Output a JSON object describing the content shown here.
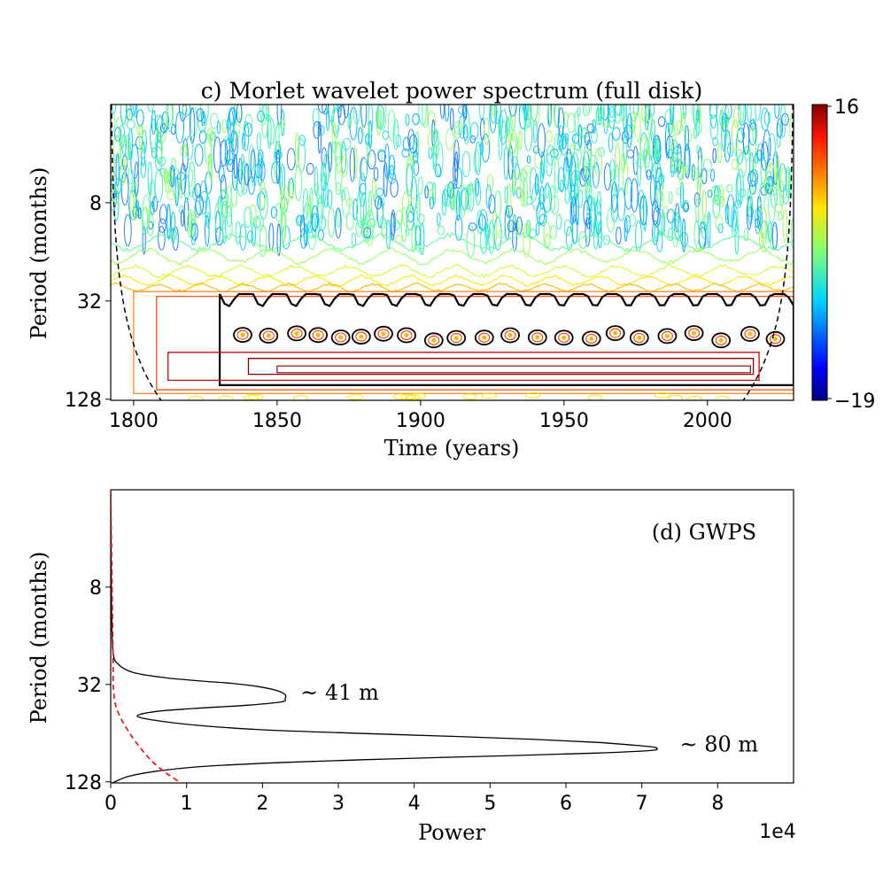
{
  "chart_data": [
    {
      "type": "heatmap",
      "title": "c) Morlet wavelet power spectrum (full disk)",
      "xlabel": "Time (years)",
      "ylabel": "Period (months)",
      "xlim": [
        1792,
        2030
      ],
      "x_ticks": [
        1800,
        1850,
        1900,
        1950,
        2000
      ],
      "y_scale": "log2",
      "y_inverted": true,
      "ylim": [
        2,
        130
      ],
      "y_ticks": [
        8,
        32,
        128
      ],
      "grid": false,
      "colorbar": {
        "min": -19,
        "max": 16,
        "tick_labels": [
          "16",
          "−19"
        ],
        "colormap": "jet"
      },
      "cone_of_influence": true,
      "contour_bands": [
        {
          "period_range": [
            2,
            16
          ],
          "level": "cyan/green",
          "pattern": "noisy"
        },
        {
          "period_range": [
            16,
            30
          ],
          "level": "yellow/orange"
        },
        {
          "period_range": [
            30,
            120
          ],
          "level": "red/dark red"
        }
      ]
    },
    {
      "type": "line",
      "title": "",
      "annotation": "(d) GWPS",
      "xlabel": "Power",
      "ylabel": "Period (months)",
      "xlim": [
        0,
        9
      ],
      "x_ticks": [
        0,
        1,
        2,
        3,
        4,
        5,
        6,
        7,
        8
      ],
      "x_multiplier": "1e4",
      "y_scale": "log2",
      "y_inverted": true,
      "ylim": [
        2,
        130
      ],
      "y_ticks": [
        8,
        32,
        128
      ],
      "grid": false,
      "series": [
        {
          "color": "#000000",
          "style": "solid",
          "points": [
            [
              2,
              0
            ],
            [
              10,
              0.01
            ],
            [
              20,
              0.03
            ],
            [
              24,
              0.1
            ],
            [
              27,
              0.3
            ],
            [
              29,
              0.7
            ],
            [
              30.5,
              1.2
            ],
            [
              31.5,
              1.6
            ],
            [
              33,
              1.95
            ],
            [
              35,
              2.2
            ],
            [
              37,
              2.3
            ],
            [
              39,
              2.3
            ],
            [
              41,
              2.25
            ],
            [
              43,
              1.8
            ],
            [
              45,
              1.1
            ],
            [
              47,
              0.6
            ],
            [
              50,
              0.35
            ],
            [
              53,
              0.55
            ],
            [
              57,
              1.1
            ],
            [
              61,
              2.0
            ],
            [
              64,
              3.2
            ],
            [
              67,
              4.5
            ],
            [
              70,
              5.6
            ],
            [
              73,
              6.4
            ],
            [
              76,
              6.9
            ],
            [
              78,
              7.15
            ],
            [
              80,
              7.2
            ],
            [
              82,
              7.1
            ],
            [
              85,
              6.4
            ],
            [
              88,
              5.3
            ],
            [
              92,
              3.8
            ],
            [
              97,
              2.3
            ],
            [
              103,
              1.2
            ],
            [
              110,
              0.6
            ],
            [
              118,
              0.25
            ],
            [
              128,
              0.05
            ],
            [
              132,
              0
            ]
          ]
        },
        {
          "color": "#ff0000",
          "style": "dashed",
          "points": [
            [
              2,
              0
            ],
            [
              20,
              0.03
            ],
            [
              36,
              0.04
            ],
            [
              48,
              0.1
            ],
            [
              64,
              0.25
            ],
            [
              80,
              0.4
            ],
            [
              96,
              0.55
            ],
            [
              112,
              0.72
            ],
            [
              128,
              0.9
            ],
            [
              140,
              1.0
            ]
          ]
        }
      ],
      "annotations": [
        {
          "text": "~ 41 m",
          "x": 2.5,
          "y": 36
        },
        {
          "text": "~ 80 m",
          "x": 7.5,
          "y": 75
        }
      ]
    }
  ]
}
